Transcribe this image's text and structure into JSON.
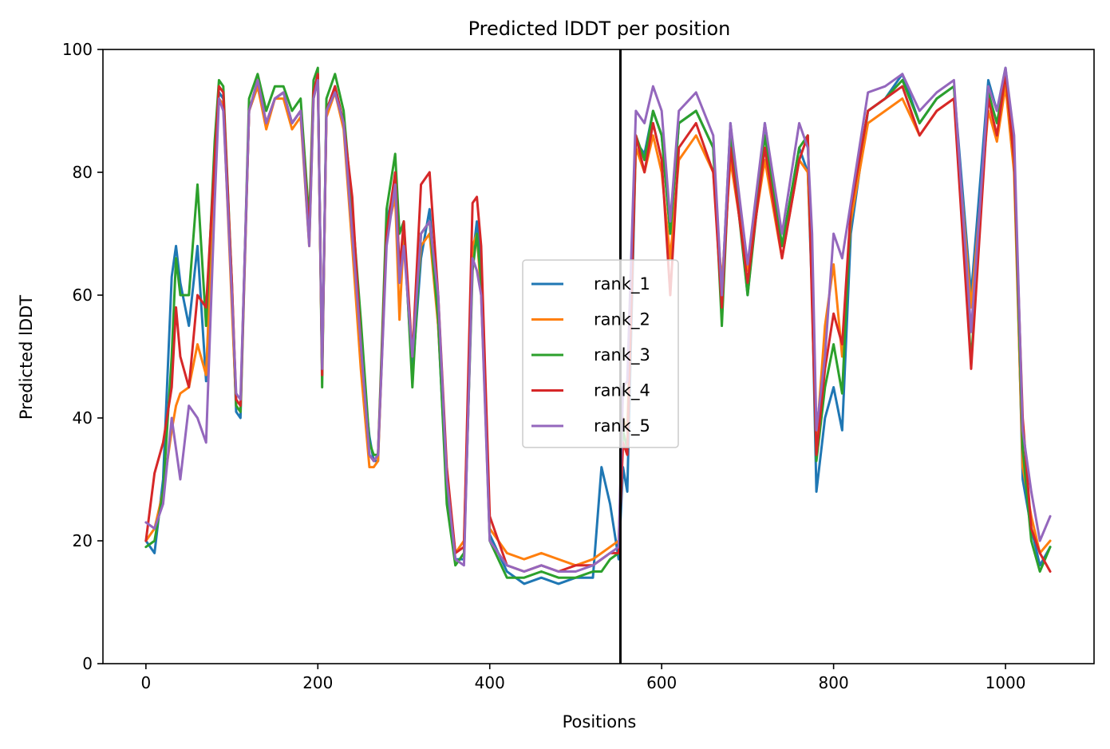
{
  "chart_data": {
    "type": "line",
    "title": "Predicted lDDT per position",
    "xlabel": "Positions",
    "ylabel": "Predicted lDDT",
    "xlim": [
      -50,
      1103
    ],
    "ylim": [
      0,
      100
    ],
    "x_ticks": [
      0,
      200,
      400,
      600,
      800,
      1000
    ],
    "y_ticks": [
      0,
      20,
      40,
      60,
      80,
      100
    ],
    "grid": false,
    "legend_position": "center",
    "vertical_line": {
      "x": 552,
      "color": "#000000"
    },
    "series": [
      {
        "name": "rank_1",
        "color": "#1f77b4",
        "x": [
          0,
          10,
          20,
          30,
          35,
          40,
          50,
          60,
          70,
          80,
          85,
          90,
          100,
          105,
          110,
          120,
          130,
          140,
          150,
          160,
          170,
          180,
          190,
          195,
          200,
          205,
          210,
          220,
          230,
          240,
          250,
          260,
          265,
          270,
          280,
          290,
          295,
          300,
          310,
          320,
          330,
          340,
          350,
          360,
          370,
          380,
          385,
          390,
          400,
          420,
          440,
          460,
          480,
          500,
          520,
          530,
          540,
          550,
          555,
          560,
          570,
          580,
          590,
          600,
          610,
          620,
          640,
          660,
          670,
          680,
          700,
          720,
          740,
          760,
          770,
          775,
          780,
          790,
          800,
          810,
          820,
          840,
          860,
          880,
          900,
          920,
          940,
          960,
          980,
          990,
          1000,
          1010,
          1020,
          1030,
          1040,
          1052
        ],
        "y": [
          20,
          18,
          30,
          63,
          68,
          62,
          55,
          68,
          46,
          82,
          93,
          92,
          60,
          41,
          40,
          90,
          94,
          88,
          92,
          93,
          88,
          90,
          70,
          93,
          96,
          48,
          90,
          94,
          88,
          70,
          50,
          37,
          33,
          33,
          72,
          78,
          65,
          70,
          47,
          66,
          74,
          55,
          28,
          17,
          17,
          66,
          72,
          64,
          21,
          15,
          13,
          14,
          13,
          14,
          14,
          32,
          26,
          17,
          32,
          28,
          85,
          83,
          90,
          86,
          70,
          88,
          90,
          84,
          60,
          88,
          60,
          88,
          68,
          84,
          80,
          60,
          28,
          40,
          45,
          38,
          70,
          90,
          92,
          96,
          88,
          92,
          94,
          60,
          95,
          90,
          97,
          84,
          30,
          22,
          16,
          19
        ]
      },
      {
        "name": "rank_2",
        "color": "#ff7f0e",
        "x": [
          0,
          10,
          20,
          30,
          35,
          40,
          50,
          60,
          70,
          80,
          85,
          90,
          100,
          105,
          110,
          120,
          130,
          140,
          150,
          160,
          170,
          180,
          190,
          195,
          200,
          205,
          210,
          220,
          230,
          240,
          250,
          260,
          265,
          270,
          280,
          290,
          295,
          300,
          310,
          320,
          330,
          340,
          350,
          360,
          370,
          380,
          385,
          390,
          400,
          420,
          440,
          460,
          480,
          500,
          520,
          530,
          540,
          550,
          555,
          560,
          570,
          580,
          590,
          600,
          610,
          620,
          640,
          660,
          670,
          680,
          700,
          720,
          740,
          760,
          770,
          775,
          780,
          790,
          800,
          810,
          820,
          840,
          860,
          880,
          900,
          920,
          940,
          960,
          980,
          990,
          1000,
          1010,
          1020,
          1030,
          1040,
          1052
        ],
        "y": [
          20,
          22,
          28,
          38,
          42,
          44,
          45,
          52,
          47,
          80,
          92,
          91,
          58,
          42,
          41,
          90,
          94,
          87,
          92,
          92,
          87,
          89,
          68,
          92,
          95,
          47,
          89,
          93,
          87,
          68,
          48,
          32,
          32,
          33,
          70,
          76,
          56,
          70,
          50,
          68,
          70,
          55,
          30,
          18,
          20,
          68,
          70,
          60,
          22,
          18,
          17,
          18,
          17,
          16,
          17,
          18,
          19,
          20,
          40,
          38,
          84,
          80,
          86,
          80,
          66,
          82,
          86,
          80,
          62,
          82,
          64,
          82,
          66,
          82,
          80,
          62,
          36,
          55,
          65,
          50,
          72,
          88,
          90,
          92,
          86,
          90,
          92,
          58,
          90,
          85,
          94,
          80,
          32,
          24,
          18,
          20
        ]
      },
      {
        "name": "rank_3",
        "color": "#2ca02c",
        "x": [
          0,
          10,
          20,
          30,
          35,
          40,
          50,
          60,
          70,
          80,
          85,
          90,
          100,
          105,
          110,
          120,
          130,
          140,
          150,
          160,
          170,
          180,
          190,
          195,
          200,
          205,
          210,
          220,
          230,
          240,
          250,
          260,
          265,
          270,
          280,
          290,
          295,
          300,
          310,
          320,
          330,
          340,
          350,
          360,
          370,
          380,
          385,
          390,
          400,
          420,
          440,
          460,
          480,
          500,
          520,
          530,
          540,
          550,
          555,
          560,
          570,
          580,
          590,
          600,
          610,
          620,
          640,
          660,
          670,
          680,
          700,
          720,
          740,
          760,
          770,
          775,
          780,
          790,
          800,
          810,
          820,
          840,
          860,
          880,
          900,
          920,
          940,
          960,
          980,
          990,
          1000,
          1010,
          1020,
          1030,
          1040,
          1052
        ],
        "y": [
          19,
          20,
          28,
          50,
          66,
          60,
          60,
          78,
          55,
          85,
          95,
          94,
          62,
          42,
          41,
          92,
          96,
          90,
          94,
          94,
          90,
          92,
          72,
          95,
          97,
          45,
          92,
          96,
          90,
          74,
          56,
          36,
          34,
          34,
          74,
          83,
          70,
          72,
          45,
          70,
          72,
          56,
          26,
          16,
          18,
          64,
          70,
          62,
          20,
          14,
          14,
          15,
          14,
          14,
          15,
          15,
          17,
          18,
          38,
          35,
          86,
          82,
          90,
          86,
          70,
          88,
          90,
          84,
          55,
          86,
          60,
          86,
          68,
          84,
          86,
          60,
          33,
          45,
          52,
          44,
          74,
          90,
          92,
          95,
          88,
          92,
          94,
          49,
          93,
          88,
          96,
          82,
          35,
          20,
          15,
          19
        ]
      },
      {
        "name": "rank_4",
        "color": "#d62728",
        "x": [
          0,
          10,
          20,
          30,
          35,
          40,
          50,
          60,
          70,
          80,
          85,
          90,
          100,
          105,
          110,
          120,
          130,
          140,
          150,
          160,
          170,
          180,
          190,
          195,
          200,
          205,
          210,
          220,
          230,
          240,
          250,
          260,
          265,
          270,
          280,
          290,
          295,
          300,
          310,
          320,
          330,
          340,
          350,
          360,
          370,
          380,
          385,
          390,
          400,
          420,
          440,
          460,
          480,
          500,
          520,
          530,
          540,
          550,
          555,
          560,
          570,
          580,
          590,
          600,
          610,
          620,
          640,
          660,
          670,
          680,
          700,
          720,
          740,
          760,
          770,
          775,
          780,
          790,
          800,
          810,
          820,
          840,
          860,
          880,
          900,
          920,
          940,
          960,
          980,
          990,
          1000,
          1010,
          1020,
          1030,
          1040,
          1052
        ],
        "y": [
          20,
          31,
          36,
          45,
          58,
          50,
          45,
          60,
          58,
          82,
          94,
          93,
          62,
          43,
          42,
          90,
          95,
          88,
          92,
          93,
          88,
          90,
          70,
          93,
          96,
          47,
          90,
          94,
          88,
          76,
          52,
          34,
          33,
          34,
          70,
          80,
          64,
          72,
          50,
          78,
          80,
          60,
          32,
          18,
          19,
          75,
          76,
          68,
          24,
          16,
          15,
          16,
          15,
          16,
          16,
          17,
          18,
          18,
          36,
          34,
          86,
          80,
          88,
          82,
          60,
          84,
          88,
          80,
          58,
          84,
          62,
          84,
          66,
          82,
          86,
          58,
          34,
          48,
          57,
          52,
          74,
          90,
          92,
          94,
          86,
          90,
          92,
          48,
          92,
          86,
          96,
          82,
          40,
          22,
          18,
          15
        ]
      },
      {
        "name": "rank_5",
        "color": "#9467bd",
        "x": [
          0,
          10,
          20,
          30,
          35,
          40,
          50,
          60,
          70,
          80,
          85,
          90,
          100,
          105,
          110,
          120,
          130,
          140,
          150,
          160,
          170,
          180,
          190,
          195,
          200,
          205,
          210,
          220,
          230,
          240,
          250,
          260,
          265,
          270,
          280,
          290,
          295,
          300,
          310,
          320,
          330,
          340,
          350,
          360,
          370,
          380,
          385,
          390,
          400,
          420,
          440,
          460,
          480,
          500,
          520,
          530,
          540,
          550,
          555,
          560,
          570,
          580,
          590,
          600,
          610,
          620,
          640,
          660,
          670,
          680,
          700,
          720,
          740,
          760,
          770,
          775,
          780,
          790,
          800,
          810,
          820,
          840,
          860,
          880,
          900,
          920,
          940,
          960,
          980,
          990,
          1000,
          1010,
          1020,
          1030,
          1040,
          1052
        ],
        "y": [
          23,
          22,
          26,
          40,
          35,
          30,
          42,
          40,
          36,
          75,
          92,
          90,
          60,
          44,
          43,
          90,
          95,
          88,
          92,
          93,
          88,
          90,
          68,
          92,
          95,
          48,
          90,
          93,
          88,
          70,
          52,
          34,
          33,
          34,
          68,
          78,
          62,
          68,
          50,
          70,
          72,
          60,
          30,
          17,
          16,
          66,
          64,
          60,
          20,
          16,
          15,
          16,
          15,
          15,
          16,
          17,
          18,
          19,
          45,
          46,
          90,
          88,
          94,
          90,
          72,
          90,
          93,
          86,
          60,
          88,
          65,
          88,
          70,
          88,
          84,
          70,
          38,
          50,
          70,
          66,
          75,
          93,
          94,
          96,
          90,
          93,
          95,
          54,
          94,
          90,
          97,
          86,
          38,
          28,
          20,
          24
        ]
      }
    ]
  }
}
